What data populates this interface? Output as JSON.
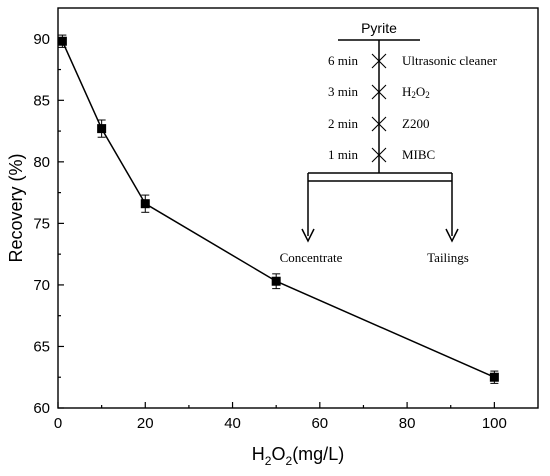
{
  "chart_data": {
    "type": "line",
    "xlabel": "H2O2(mg/L)",
    "xlabel_main": "H",
    "xlabel_sub1": "2",
    "xlabel_mid": "O",
    "xlabel_sub2": "2",
    "xlabel_unit": "(mg/L)",
    "ylabel": "Recovery (%)",
    "xlim": [
      0,
      110
    ],
    "ylim": [
      60,
      92.5
    ],
    "x_ticks": [
      0,
      20,
      40,
      60,
      80,
      100
    ],
    "y_ticks": [
      60,
      65,
      70,
      75,
      80,
      85,
      90
    ],
    "grid": false,
    "series": [
      {
        "x": [
          1,
          10,
          20,
          50,
          100
        ],
        "y": [
          89.8,
          82.7,
          76.6,
          70.3,
          62.5
        ],
        "err": [
          0.5,
          0.7,
          0.7,
          0.6,
          0.5
        ]
      }
    ]
  },
  "flowsheet": {
    "title": "Pyrite",
    "steps": [
      {
        "time": "6 min",
        "reagent": "Ultrasonic cleaner"
      },
      {
        "time": "3 min",
        "reagent": "H2O2"
      },
      {
        "time": "2 min",
        "reagent": "Z200"
      },
      {
        "time": "1 min",
        "reagent": "MIBC"
      }
    ],
    "outputs": {
      "left": "Concentrate",
      "right": "Tailings"
    }
  }
}
